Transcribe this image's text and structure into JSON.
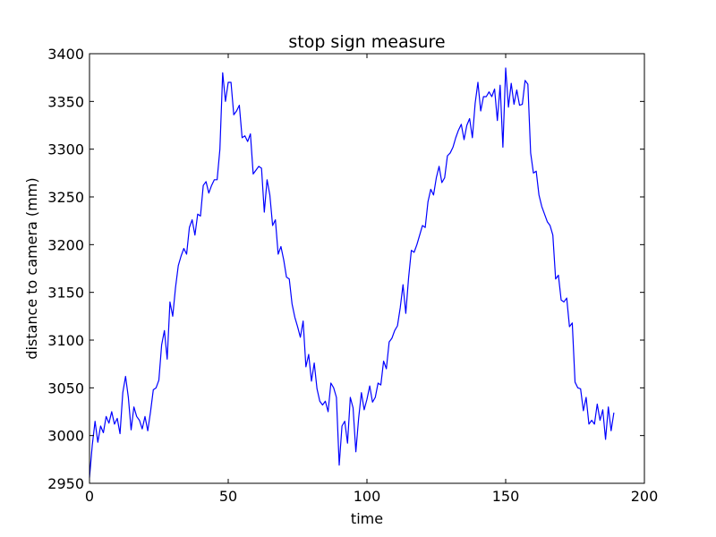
{
  "chart_data": {
    "type": "line",
    "title": "stop sign measure",
    "xlabel": "time",
    "ylabel": "distance to camera (mm)",
    "xlim": [
      0,
      200
    ],
    "ylim": [
      2950,
      3400
    ],
    "xticks": [
      0,
      50,
      100,
      150,
      200
    ],
    "yticks": [
      2950,
      3000,
      3050,
      3100,
      3150,
      3200,
      3250,
      3300,
      3350,
      3400
    ],
    "grid": false,
    "line_color": "#0000ff",
    "series": [
      {
        "values": [
          2956,
          2990,
          3015,
          2993,
          3010,
          3003,
          3020,
          3013,
          3025,
          3012,
          3018,
          3002,
          3045,
          3062,
          3040,
          3006,
          3030,
          3020,
          3016,
          3007,
          3020,
          3005,
          3025,
          3048,
          3050,
          3058,
          3095,
          3110,
          3080,
          3140,
          3125,
          3155,
          3178,
          3188,
          3196,
          3190,
          3218,
          3226,
          3210,
          3232,
          3230,
          3262,
          3266,
          3254,
          3262,
          3268,
          3268,
          3300,
          3380,
          3350,
          3370,
          3370,
          3336,
          3340,
          3346,
          3312,
          3314,
          3308,
          3316,
          3274,
          3278,
          3282,
          3280,
          3234,
          3268,
          3252,
          3220,
          3226,
          3190,
          3198,
          3184,
          3166,
          3164,
          3138,
          3124,
          3114,
          3103,
          3120,
          3072,
          3085,
          3057,
          3076,
          3049,
          3036,
          3032,
          3036,
          3025,
          3055,
          3050,
          3040,
          2969,
          3010,
          3015,
          2992,
          3040,
          3029,
          2983,
          3018,
          3045,
          3027,
          3038,
          3052,
          3035,
          3040,
          3055,
          3053,
          3078,
          3070,
          3098,
          3102,
          3110,
          3115,
          3134,
          3158,
          3128,
          3165,
          3194,
          3192,
          3200,
          3210,
          3220,
          3218,
          3245,
          3258,
          3252,
          3270,
          3282,
          3265,
          3270,
          3293,
          3296,
          3302,
          3312,
          3320,
          3326,
          3310,
          3325,
          3332,
          3312,
          3348,
          3370,
          3340,
          3355,
          3355,
          3360,
          3355,
          3363,
          3330,
          3367,
          3302,
          3385,
          3344,
          3369,
          3347,
          3362,
          3346,
          3347,
          3372,
          3368,
          3296,
          3275,
          3277,
          3252,
          3240,
          3232,
          3224,
          3220,
          3210,
          3164,
          3168,
          3142,
          3140,
          3144,
          3114,
          3118,
          3056,
          3050,
          3049,
          3026,
          3040,
          3012,
          3016,
          3012,
          3033,
          3016,
          3027,
          2996,
          3030,
          3005,
          3024
        ]
      }
    ]
  }
}
